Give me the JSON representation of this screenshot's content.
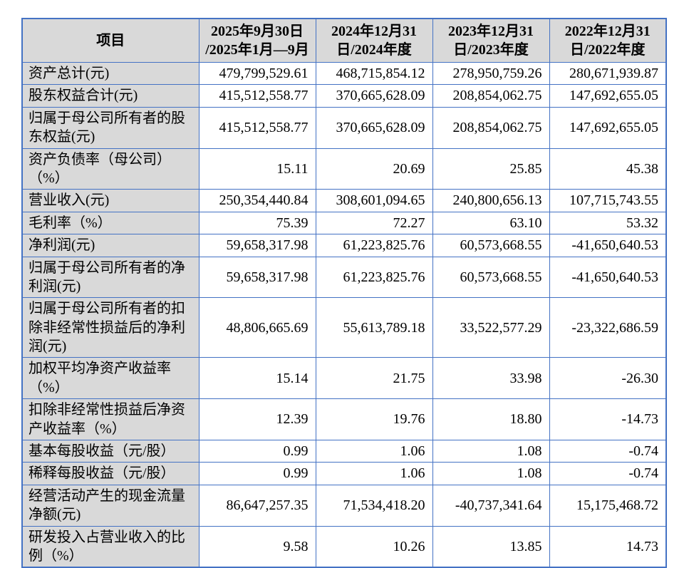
{
  "colors": {
    "border": "#4472C4",
    "header_bg": "#D9D9D9",
    "page_bg": "#FFFFFF"
  },
  "table": {
    "corner_header": "项目",
    "column_headers": [
      "2025年9月30日\n/2025年1月—9月",
      "2024年12月31\n日/2024年度",
      "2023年12月31\n日/2023年度",
      "2022年12月31\n日/2022年度"
    ],
    "rows": [
      {
        "label": "资产总计(元)",
        "values": [
          "479,799,529.61",
          "468,715,854.12",
          "278,950,759.26",
          "280,671,939.87"
        ]
      },
      {
        "label": "股东权益合计(元)",
        "values": [
          "415,512,558.77",
          "370,665,628.09",
          "208,854,062.75",
          "147,692,655.05"
        ]
      },
      {
        "label": "归属于母公司所有者的股东权益(元)",
        "values": [
          "415,512,558.77",
          "370,665,628.09",
          "208,854,062.75",
          "147,692,655.05"
        ]
      },
      {
        "label": "资产负债率（母公司）（%）",
        "values": [
          "15.11",
          "20.69",
          "25.85",
          "45.38"
        ]
      },
      {
        "label": "营业收入(元)",
        "values": [
          "250,354,440.84",
          "308,601,094.65",
          "240,800,656.13",
          "107,715,743.55"
        ]
      },
      {
        "label": "毛利率（%）",
        "values": [
          "75.39",
          "72.27",
          "63.10",
          "53.32"
        ]
      },
      {
        "label": "净利润(元)",
        "values": [
          "59,658,317.98",
          "61,223,825.76",
          "60,573,668.55",
          "-41,650,640.53"
        ]
      },
      {
        "label": "归属于母公司所有者的净利润(元)",
        "values": [
          "59,658,317.98",
          "61,223,825.76",
          "60,573,668.55",
          "-41,650,640.53"
        ]
      },
      {
        "label": "归属于母公司所有者的扣除非经常性损益后的净利润(元)",
        "values": [
          "48,806,665.69",
          "55,613,789.18",
          "33,522,577.29",
          "-23,322,686.59"
        ]
      },
      {
        "label": "加权平均净资产收益率（%）",
        "values": [
          "15.14",
          "21.75",
          "33.98",
          "-26.30"
        ]
      },
      {
        "label": "扣除非经常性损益后净资产收益率（%）",
        "values": [
          "12.39",
          "19.76",
          "18.80",
          "-14.73"
        ]
      },
      {
        "label": "基本每股收益（元/股）",
        "values": [
          "0.99",
          "1.06",
          "1.08",
          "-0.74"
        ]
      },
      {
        "label": "稀释每股收益（元/股）",
        "values": [
          "0.99",
          "1.06",
          "1.08",
          "-0.74"
        ]
      },
      {
        "label": "经营活动产生的现金流量净额(元)",
        "values": [
          "86,647,257.35",
          "71,534,418.20",
          "-40,737,341.64",
          "15,175,468.72"
        ]
      },
      {
        "label": "研发投入占营业收入的比例（%）",
        "values": [
          "9.58",
          "10.26",
          "13.85",
          "14.73"
        ]
      }
    ]
  }
}
